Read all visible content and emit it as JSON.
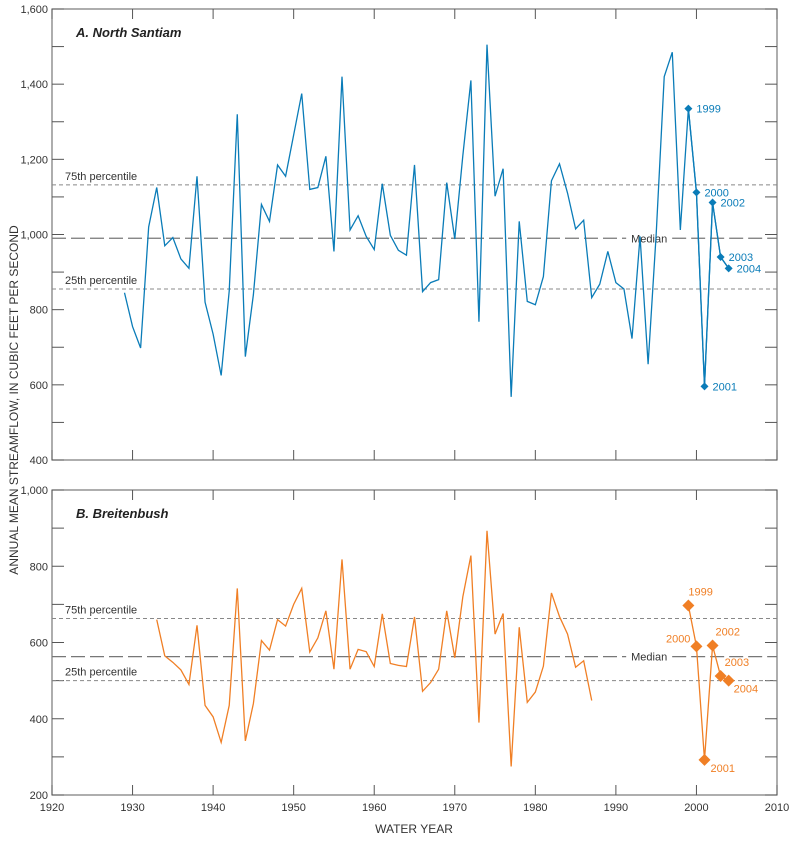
{
  "chart_data": [
    {
      "type": "line",
      "title": "A. North Santiam",
      "color": "#0a7cb8",
      "ylim": [
        400,
        1600
      ],
      "yticks": [
        400,
        600,
        800,
        1000,
        1200,
        1400,
        1600
      ],
      "ytick_labels": [
        "400",
        "600",
        "800",
        "1,000",
        "1,200",
        "1,400",
        "1,600"
      ],
      "xlim": [
        1920,
        2010
      ],
      "x": [
        1929,
        1930,
        1931,
        1932,
        1933,
        1934,
        1935,
        1936,
        1937,
        1938,
        1939,
        1940,
        1941,
        1942,
        1943,
        1944,
        1945,
        1946,
        1947,
        1948,
        1949,
        1950,
        1951,
        1952,
        1953,
        1954,
        1955,
        1956,
        1957,
        1958,
        1959,
        1960,
        1961,
        1962,
        1963,
        1964,
        1965,
        1966,
        1967,
        1968,
        1969,
        1970,
        1971,
        1972,
        1973,
        1974,
        1975,
        1976,
        1977,
        1978,
        1979,
        1980,
        1981,
        1982,
        1983,
        1984,
        1985,
        1986,
        1987,
        1988,
        1989,
        1990,
        1991,
        1992,
        1993,
        1994,
        1995,
        1996,
        1997,
        1998,
        1999,
        2000,
        2001,
        2002,
        2003,
        2004
      ],
      "y": [
        845,
        755,
        698,
        1020,
        1125,
        970,
        992,
        935,
        910,
        1155,
        820,
        735,
        625,
        850,
        1320,
        675,
        840,
        1080,
        1035,
        1185,
        1155,
        1265,
        1375,
        1120,
        1125,
        1208,
        955,
        1420,
        1012,
        1050,
        995,
        960,
        1135,
        998,
        958,
        945,
        1185,
        848,
        872,
        880,
        1138,
        988,
        1210,
        1410,
        768,
        1505,
        1102,
        1175,
        568,
        1035,
        822,
        813,
        888,
        1143,
        1188,
        1110,
        1015,
        1038,
        832,
        868,
        955,
        872,
        855,
        723,
        995,
        655,
        1000,
        1420,
        1485,
        1012,
        1335,
        1112,
        596,
        1085,
        940,
        910
      ],
      "highlighted_points": [
        {
          "label": "1999",
          "x": 1999,
          "y": 1335
        },
        {
          "label": "2000",
          "x": 2000,
          "y": 1112
        },
        {
          "label": "2001",
          "x": 2001,
          "y": 596
        },
        {
          "label": "2002",
          "x": 2002,
          "y": 1085
        },
        {
          "label": "2003",
          "x": 2003,
          "y": 940
        },
        {
          "label": "2004",
          "x": 2004,
          "y": 910
        }
      ],
      "reference_lines": [
        {
          "label": "75th percentile",
          "value": 1132
        },
        {
          "label": "Median",
          "value": 990
        },
        {
          "label": "25th percentile",
          "value": 855
        }
      ]
    },
    {
      "type": "line",
      "title": "B. Breitenbush",
      "color": "#f07f25",
      "ylim": [
        200,
        1000
      ],
      "yticks": [
        200,
        400,
        600,
        800,
        1000
      ],
      "ytick_labels": [
        "200",
        "400",
        "600",
        "800",
        "1,000"
      ],
      "xlim": [
        1920,
        2010
      ],
      "x": [
        1933,
        1934,
        1935,
        1936,
        1937,
        1938,
        1939,
        1940,
        1941,
        1942,
        1943,
        1944,
        1945,
        1946,
        1947,
        1948,
        1949,
        1950,
        1951,
        1952,
        1953,
        1954,
        1955,
        1956,
        1957,
        1958,
        1959,
        1960,
        1961,
        1962,
        1963,
        1964,
        1965,
        1966,
        1967,
        1968,
        1969,
        1970,
        1971,
        1972,
        1973,
        1974,
        1975,
        1976,
        1977,
        1978,
        1979,
        1980,
        1981,
        1982,
        1983,
        1984,
        1985,
        1986,
        1987
      ],
      "y": [
        660,
        565,
        548,
        528,
        490,
        645,
        435,
        405,
        338,
        435,
        742,
        342,
        440,
        605,
        580,
        660,
        643,
        700,
        742,
        575,
        612,
        683,
        530,
        818,
        530,
        582,
        576,
        537,
        675,
        545,
        540,
        537,
        667,
        472,
        495,
        530,
        683,
        560,
        720,
        828,
        390,
        893,
        622,
        676,
        275,
        640,
        443,
        470,
        538,
        730,
        668,
        622,
        535,
        552,
        448
      ],
      "highlighted_points": [
        {
          "label": "1999",
          "x": 1999,
          "y": 697
        },
        {
          "label": "2000",
          "x": 2000,
          "y": 590
        },
        {
          "label": "2001",
          "x": 2001,
          "y": 292
        },
        {
          "label": "2002",
          "x": 2002,
          "y": 592
        },
        {
          "label": "2003",
          "x": 2003,
          "y": 512
        },
        {
          "label": "2004",
          "x": 2004,
          "y": 500
        }
      ],
      "reference_lines": [
        {
          "label": "75th percentile",
          "value": 663
        },
        {
          "label": "Median",
          "value": 563
        },
        {
          "label": "25th percentile",
          "value": 500
        }
      ]
    }
  ],
  "xticks": [
    1920,
    1930,
    1940,
    1950,
    1960,
    1970,
    1980,
    1990,
    2000,
    2010
  ],
  "xlabel": "WATER YEAR",
  "ylabel": "ANNUAL MEAN STREAMFLOW, IN CUBIC FEET PER SECOND"
}
